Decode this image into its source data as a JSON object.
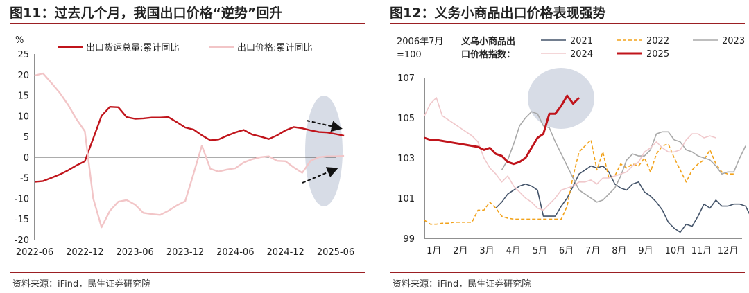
{
  "charts": [
    {
      "heading": "图11：过去几个月，我国出口价格“逆势”回升",
      "source": "资料来源：iFind，民生证券研究院"
    },
    {
      "heading": "图12：义务小商品出口价格表现强势",
      "source": "资料来源：iFind，民生证券研究院"
    }
  ],
  "chart_data": [
    {
      "type": "line",
      "yunit": "%",
      "ylim": [
        -20,
        25
      ],
      "yticks": [
        -20,
        -15,
        -10,
        -5,
        0,
        5,
        10,
        15,
        20,
        25
      ],
      "xticks": [
        "2022-06",
        "2022-12",
        "2023-06",
        "2023-12",
        "2024-06",
        "2024-12",
        "2025-06"
      ],
      "xstart": "2022-06",
      "xend": "2025-06",
      "legend": [
        "出口货运总量:累计同比",
        "出口价格:累计同比"
      ],
      "series": [
        {
          "name": "出口货运总量:累计同比",
          "color": "#c0141b",
          "points": [
            [
              "2022-06",
              -6.0
            ],
            [
              "2022-07",
              -5.8
            ],
            [
              "2022-08",
              -5.0
            ],
            [
              "2022-09",
              -4.2
            ],
            [
              "2022-10",
              -3.2
            ],
            [
              "2022-11",
              -2.0
            ],
            [
              "2022-12",
              -1.0
            ],
            [
              "2023-01",
              4.5
            ],
            [
              "2023-02",
              10.0
            ],
            [
              "2023-03",
              12.2
            ],
            [
              "2023-04",
              12.1
            ],
            [
              "2023-05",
              9.7
            ],
            [
              "2023-06",
              9.3
            ],
            [
              "2023-07",
              9.4
            ],
            [
              "2023-08",
              9.6
            ],
            [
              "2023-09",
              9.6
            ],
            [
              "2023-10",
              9.7
            ],
            [
              "2023-11",
              8.5
            ],
            [
              "2023-12",
              7.2
            ],
            [
              "2024-01",
              6.7
            ],
            [
              "2024-02",
              5.3
            ],
            [
              "2024-03",
              4.1
            ],
            [
              "2024-04",
              4.3
            ],
            [
              "2024-05",
              5.2
            ],
            [
              "2024-06",
              6.0
            ],
            [
              "2024-07",
              6.6
            ],
            [
              "2024-08",
              5.5
            ],
            [
              "2024-09",
              5.0
            ],
            [
              "2024-10",
              4.4
            ],
            [
              "2024-11",
              5.3
            ],
            [
              "2024-12",
              6.5
            ],
            [
              "2025-01",
              7.3
            ],
            [
              "2025-02",
              7.0
            ],
            [
              "2025-03",
              6.5
            ],
            [
              "2025-04",
              6.1
            ],
            [
              "2025-05",
              6.0
            ],
            [
              "2025-06",
              5.6
            ],
            [
              "2025-07",
              5.2
            ]
          ]
        },
        {
          "name": "出口价格:累计同比",
          "color": "#f2c5c7",
          "points": [
            [
              "2022-06",
              19.8
            ],
            [
              "2022-07",
              20.3
            ],
            [
              "2022-08",
              18.0
            ],
            [
              "2022-09",
              15.6
            ],
            [
              "2022-10",
              12.7
            ],
            [
              "2022-11",
              9.2
            ],
            [
              "2022-12",
              6.3
            ],
            [
              "2023-01",
              -10.0
            ],
            [
              "2023-02",
              -17.0
            ],
            [
              "2023-03",
              -13.0
            ],
            [
              "2023-04",
              -10.8
            ],
            [
              "2023-05",
              -10.4
            ],
            [
              "2023-06",
              -11.5
            ],
            [
              "2023-07",
              -13.5
            ],
            [
              "2023-08",
              -13.8
            ],
            [
              "2023-09",
              -14.0
            ],
            [
              "2023-10",
              -13.0
            ],
            [
              "2023-11",
              -11.7
            ],
            [
              "2023-12",
              -10.7
            ],
            [
              "2024-01",
              -4.0
            ],
            [
              "2024-02",
              2.8
            ],
            [
              "2024-03",
              -2.8
            ],
            [
              "2024-04",
              -3.5
            ],
            [
              "2024-05",
              -3.0
            ],
            [
              "2024-06",
              -2.7
            ],
            [
              "2024-07",
              -1.3
            ],
            [
              "2024-08",
              -0.5
            ],
            [
              "2024-09",
              0.0
            ],
            [
              "2024-10",
              0.2
            ],
            [
              "2024-11",
              -0.9
            ],
            [
              "2024-12",
              -1.0
            ],
            [
              "2025-01",
              -2.5
            ],
            [
              "2025-02",
              -3.8
            ],
            [
              "2025-03",
              -0.9
            ],
            [
              "2025-04",
              0.0
            ],
            [
              "2025-05",
              0.2
            ],
            [
              "2025-06",
              0.2
            ],
            [
              "2025-07",
              0.3
            ]
          ]
        }
      ]
    },
    {
      "type": "line",
      "ylabel": [
        "2006年7月",
        "=100"
      ],
      "legend_title": [
        "义乌小商品出",
        "口价格指数："
      ],
      "ylim": [
        99,
        107
      ],
      "yticks": [
        99,
        101,
        103,
        105,
        107
      ],
      "xticks": [
        "1月",
        "2月",
        "3月",
        "4月",
        "5月",
        "6月",
        "7月",
        "8月",
        "9月",
        "10月",
        "11月",
        "12月"
      ],
      "series": [
        {
          "name": "2021",
          "color": "#44546a",
          "dash": false,
          "width": 1.6,
          "values": [
            null,
            null,
            null,
            null,
            null,
            null,
            null,
            null,
            null,
            null,
            null,
            null,
            100.5,
            100.8,
            101.2,
            101.4,
            101.6,
            101.7,
            101.6,
            101.4,
            100.1,
            100.1,
            100.1,
            100.6,
            101.0,
            101.6,
            102.2,
            102.4,
            102.6,
            102.5,
            102.6,
            102.3,
            101.7,
            101.5,
            101.4,
            101.7,
            101.8,
            101.3,
            101.1,
            100.8,
            100.4,
            99.8,
            99.5,
            99.3,
            99.7,
            99.6,
            100.1,
            100.7,
            100.5,
            100.9,
            100.6,
            100.6,
            100.7,
            100.7,
            100.6,
            100.0,
            99.8,
            99.9,
            99.6
          ]
        },
        {
          "name": "2022",
          "color": "#f2a21a",
          "dash": true,
          "width": 1.6,
          "values": [
            99.9,
            99.7,
            99.7,
            99.75,
            99.75,
            99.8,
            99.8,
            99.8,
            99.8,
            100.4,
            100.4,
            100.8,
            100.5,
            100.1,
            100.0,
            99.95,
            99.95,
            99.95,
            99.95,
            99.95,
            99.95,
            99.95,
            99.95,
            99.95,
            100.6,
            102.1,
            103.3,
            103.6,
            103.9,
            102.4,
            103.3,
            102.0,
            102.1,
            102.7,
            102.5,
            102.7,
            102.6,
            103.0,
            102.3,
            103.2,
            103.6,
            103.7,
            103.0,
            102.4,
            101.8,
            102.4,
            102.7,
            102.9,
            103.4,
            102.7,
            102.3,
            102.2,
            102.2
          ]
        },
        {
          "name": "2023",
          "color": "#a8a8a8",
          "dash": false,
          "width": 1.6,
          "values": [
            null,
            null,
            null,
            null,
            null,
            null,
            null,
            null,
            null,
            null,
            null,
            null,
            null,
            102.4,
            102.9,
            103.7,
            104.6,
            105.0,
            105.3,
            105.2,
            104.6,
            104.5,
            103.8,
            103.2,
            102.6,
            102.0,
            101.4,
            101.2,
            101.0,
            100.8,
            100.9,
            101.2,
            101.5,
            102.1,
            102.9,
            103.2,
            103.1,
            103.1,
            103.4,
            104.2,
            104.3,
            104.3,
            103.9,
            103.8,
            103.4,
            103.3,
            103.1,
            103.0,
            102.9,
            102.6,
            102.2,
            102.3,
            102.3,
            103.0,
            103.6
          ]
        },
        {
          "name": "2024",
          "color": "#f0c8cb",
          "dash": false,
          "width": 1.6,
          "values": [
            105.1,
            105.7,
            106.0,
            105.1,
            104.9,
            104.7,
            104.5,
            104.3,
            104.1,
            103.8,
            103.0,
            102.5,
            102.2,
            101.8,
            102.1,
            101.6,
            101.3,
            101.0,
            100.8,
            100.5,
            100.4,
            100.7,
            101.0,
            101.4,
            101.5,
            101.6,
            101.8,
            101.8,
            101.9,
            101.7,
            102.0,
            102.0,
            102.1,
            102.2,
            102.3,
            102.6,
            102.8,
            103.3,
            103.5,
            103.8,
            103.5,
            103.3,
            103.3,
            103.4,
            103.9,
            104.2,
            104.2,
            104.0,
            104.1,
            104.0
          ]
        },
        {
          "name": "2025",
          "color": "#c0141b",
          "dash": false,
          "width": 3,
          "values": [
            104.0,
            103.9,
            103.9,
            103.85,
            103.8,
            103.75,
            103.7,
            103.65,
            103.6,
            103.55,
            103.4,
            103.5,
            103.2,
            103.1,
            102.8,
            102.7,
            102.8,
            103.0,
            103.5,
            104.0,
            104.2,
            105.2,
            105.2,
            105.6,
            106.1,
            105.7,
            106.0
          ]
        }
      ]
    }
  ]
}
